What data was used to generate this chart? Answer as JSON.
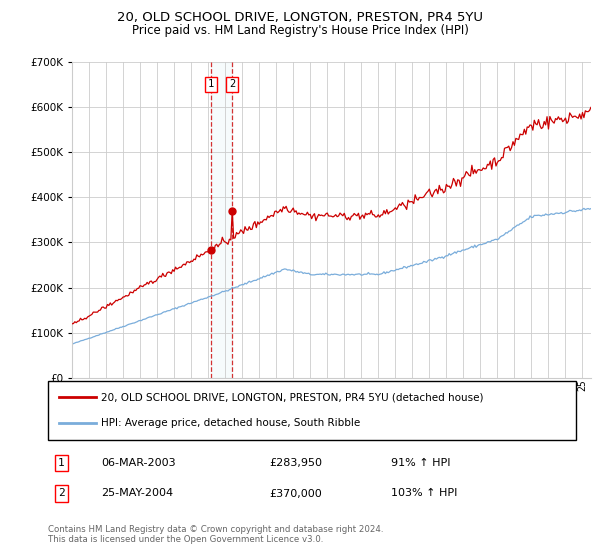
{
  "title1": "20, OLD SCHOOL DRIVE, LONGTON, PRESTON, PR4 5YU",
  "title2": "Price paid vs. HM Land Registry's House Price Index (HPI)",
  "hpi_label": "HPI: Average price, detached house, South Ribble",
  "property_label": "20, OLD SCHOOL DRIVE, LONGTON, PRESTON, PR4 5YU (detached house)",
  "footer1": "Contains HM Land Registry data © Crown copyright and database right 2024.",
  "footer2": "This data is licensed under the Open Government Licence v3.0.",
  "transaction1": {
    "num": "1",
    "date": "06-MAR-2003",
    "price": "£283,950",
    "hpi": "91% ↑ HPI"
  },
  "transaction2": {
    "num": "2",
    "date": "25-MAY-2004",
    "price": "£370,000",
    "hpi": "103% ↑ HPI"
  },
  "t1_year": 2003.17,
  "t2_year": 2004.4,
  "t1_price": 283950,
  "t2_price": 370000,
  "property_color": "#cc0000",
  "hpi_color": "#7aaddb",
  "background_color": "#ffffff",
  "grid_color": "#cccccc",
  "ylim": [
    0,
    700000
  ],
  "yticks": [
    0,
    100000,
    200000,
    300000,
    400000,
    500000,
    600000,
    700000
  ],
  "xlim_start": 1995,
  "xlim_end": 2025.5
}
